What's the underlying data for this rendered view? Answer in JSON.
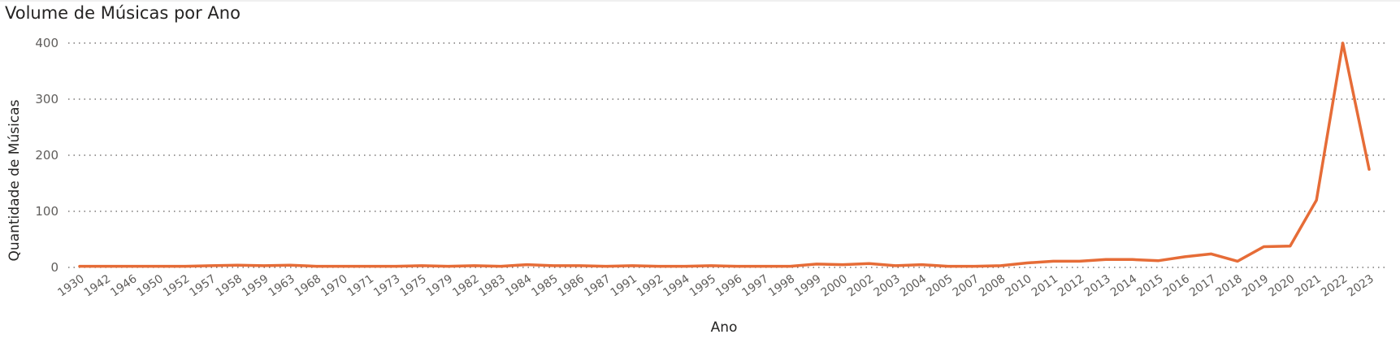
{
  "chart_data": {
    "type": "line",
    "title": "Volume de Músicas por Ano",
    "xlabel": "Ano",
    "ylabel": "Quantidade de Músicas",
    "ylim": [
      0,
      400
    ],
    "yticks": [
      "0",
      "100",
      "200",
      "300",
      "400"
    ],
    "grid": true,
    "line_color": "#E66C37",
    "categories": [
      "1930",
      "1942",
      "1946",
      "1950",
      "1952",
      "1957",
      "1958",
      "1959",
      "1963",
      "1968",
      "1970",
      "1971",
      "1973",
      "1975",
      "1979",
      "1982",
      "1983",
      "1984",
      "1985",
      "1986",
      "1987",
      "1991",
      "1992",
      "1994",
      "1995",
      "1996",
      "1997",
      "1998",
      "1999",
      "2000",
      "2002",
      "2003",
      "2004",
      "2005",
      "2007",
      "2008",
      "2010",
      "2011",
      "2012",
      "2013",
      "2014",
      "2015",
      "2016",
      "2017",
      "2018",
      "2019",
      "2020",
      "2021",
      "2022",
      "2023"
    ],
    "values": [
      2,
      2,
      2,
      2,
      2,
      3,
      4,
      3,
      4,
      2,
      2,
      2,
      2,
      3,
      2,
      3,
      2,
      5,
      3,
      3,
      2,
      3,
      2,
      2,
      3,
      2,
      2,
      2,
      6,
      5,
      7,
      3,
      5,
      2,
      2,
      3,
      8,
      11,
      11,
      14,
      14,
      12,
      19,
      24,
      11,
      37,
      38,
      120,
      400,
      175
    ]
  }
}
